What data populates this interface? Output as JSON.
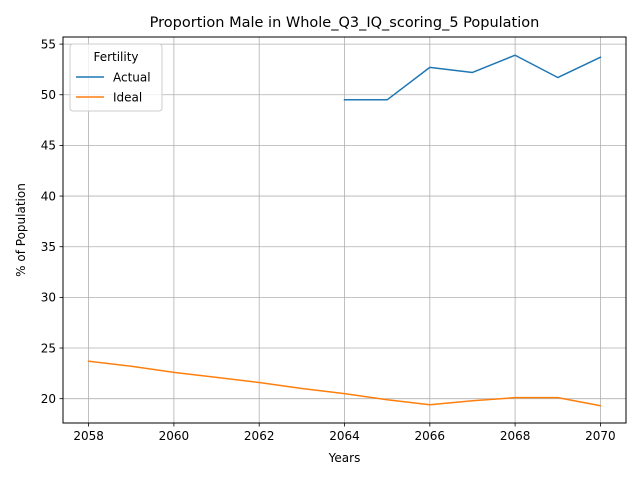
{
  "chart_data": {
    "type": "line",
    "title": "Proportion Male in Whole_Q3_IQ_scoring_5 Population",
    "xlabel": "Years",
    "ylabel": "% of Population",
    "xlim": [
      2057.4,
      2070.6
    ],
    "ylim": [
      17.6,
      55.7
    ],
    "xticks": [
      2058,
      2060,
      2062,
      2064,
      2066,
      2068,
      2070
    ],
    "yticks": [
      20,
      25,
      30,
      35,
      40,
      45,
      50,
      55
    ],
    "grid": true,
    "legend": {
      "title": "Fertility",
      "placement": "top-left"
    },
    "series": [
      {
        "name": "Actual",
        "color": "#1f77b4",
        "x": [
          2064,
          2065,
          2066,
          2067,
          2068,
          2069,
          2070
        ],
        "y": [
          49.5,
          49.5,
          52.7,
          52.2,
          53.9,
          51.7,
          53.7
        ]
      },
      {
        "name": "Ideal",
        "color": "#ff7f0e",
        "x": [
          2058,
          2059,
          2060,
          2061,
          2062,
          2063,
          2064,
          2065,
          2066,
          2067,
          2068,
          2069,
          2070
        ],
        "y": [
          23.7,
          23.2,
          22.6,
          22.1,
          21.6,
          21.0,
          20.5,
          19.9,
          19.4,
          19.8,
          20.1,
          20.1,
          19.3
        ]
      }
    ]
  }
}
